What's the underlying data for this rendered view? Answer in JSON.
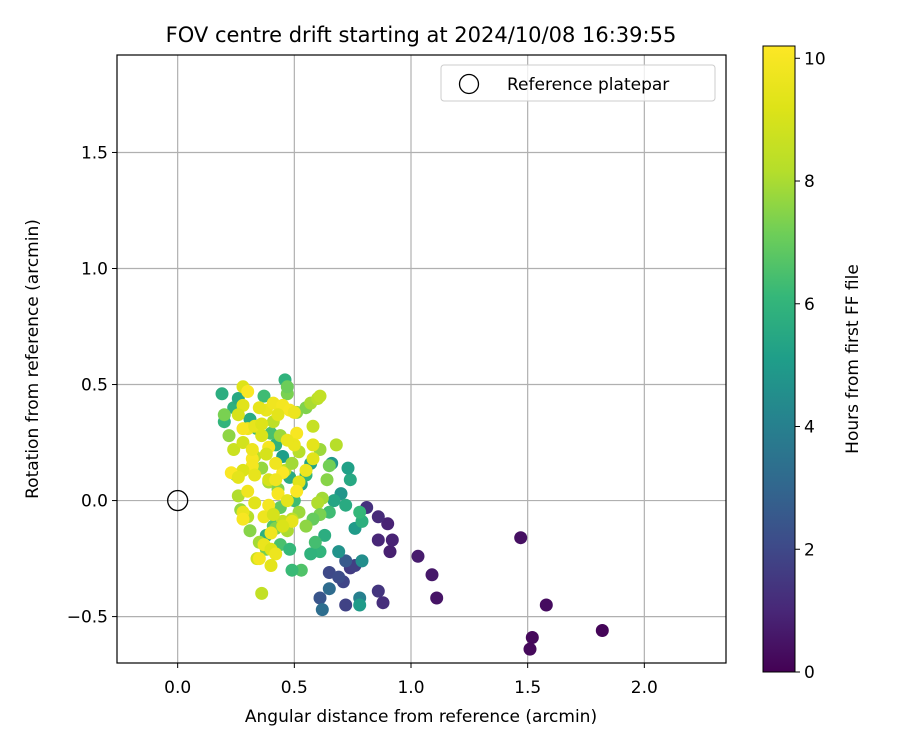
{
  "chart_data": {
    "type": "scatter",
    "title": "FOV centre drift starting at 2024/10/08 16:39:55",
    "xlabel": "Angular distance from reference (arcmin)",
    "ylabel": "Rotation from reference (arcmin)",
    "xlim": [
      -0.26,
      2.35
    ],
    "ylim": [
      -0.7,
      1.92
    ],
    "xticks": [
      "0.0",
      "0.5",
      "1.0",
      "1.5",
      "2.0"
    ],
    "xtick_values": [
      0,
      0.5,
      1.0,
      1.5,
      2.0
    ],
    "yticks": [
      "−0.5",
      "0.0",
      "0.5",
      "1.0",
      "1.5"
    ],
    "ytick_values": [
      -0.5,
      0,
      0.5,
      1.0,
      1.5
    ],
    "grid": true,
    "legend": {
      "placement": "top-right",
      "entries": [
        "Reference platepar"
      ]
    },
    "reference_point": {
      "x": 0.0,
      "y": 0.0
    },
    "colorbar": {
      "label": "Hours from first FF file",
      "range": [
        0,
        10.2
      ],
      "ticks": [
        "0",
        "2",
        "4",
        "6",
        "8",
        "10"
      ],
      "tick_values": [
        0,
        2,
        4,
        6,
        8,
        10
      ],
      "colormap": "viridis"
    },
    "points": [
      {
        "x": 1.82,
        "y": -0.56,
        "h": 0.1
      },
      {
        "x": 1.52,
        "y": -0.59,
        "h": 0.2
      },
      {
        "x": 1.51,
        "y": -0.64,
        "h": 0.2
      },
      {
        "x": 1.58,
        "y": -0.45,
        "h": 0.3
      },
      {
        "x": 1.47,
        "y": -0.16,
        "h": 0.4
      },
      {
        "x": 1.11,
        "y": -0.42,
        "h": 0.5
      },
      {
        "x": 1.09,
        "y": -0.32,
        "h": 0.6
      },
      {
        "x": 1.03,
        "y": -0.24,
        "h": 0.7
      },
      {
        "x": 0.91,
        "y": -0.22,
        "h": 0.8
      },
      {
        "x": 0.92,
        "y": -0.17,
        "h": 0.9
      },
      {
        "x": 0.86,
        "y": -0.17,
        "h": 1.0
      },
      {
        "x": 0.9,
        "y": -0.1,
        "h": 0.9
      },
      {
        "x": 0.86,
        "y": -0.07,
        "h": 1.1
      },
      {
        "x": 0.88,
        "y": -0.44,
        "h": 1.2
      },
      {
        "x": 0.86,
        "y": -0.39,
        "h": 1.4
      },
      {
        "x": 0.81,
        "y": -0.03,
        "h": 1.3
      },
      {
        "x": 0.72,
        "y": -0.45,
        "h": 1.8
      },
      {
        "x": 0.74,
        "y": -0.29,
        "h": 1.6
      },
      {
        "x": 0.76,
        "y": -0.28,
        "h": 1.7
      },
      {
        "x": 0.71,
        "y": -0.35,
        "h": 1.9
      },
      {
        "x": 0.65,
        "y": -0.31,
        "h": 2.0
      },
      {
        "x": 0.69,
        "y": -0.33,
        "h": 2.1
      },
      {
        "x": 0.61,
        "y": -0.42,
        "h": 2.4
      },
      {
        "x": 0.72,
        "y": -0.26,
        "h": 2.6
      },
      {
        "x": 0.65,
        "y": -0.38,
        "h": 3.2
      },
      {
        "x": 0.62,
        "y": -0.47,
        "h": 3.3
      },
      {
        "x": 0.78,
        "y": -0.42,
        "h": 4.0
      },
      {
        "x": 0.78,
        "y": -0.45,
        "h": 5.0
      },
      {
        "x": 0.79,
        "y": -0.26,
        "h": 4.5
      },
      {
        "x": 0.69,
        "y": -0.22,
        "h": 4.7
      },
      {
        "x": 0.74,
        "y": 0.09,
        "h": 5.5
      },
      {
        "x": 0.73,
        "y": 0.14,
        "h": 5.2
      },
      {
        "x": 0.7,
        "y": 0.03,
        "h": 4.8
      },
      {
        "x": 0.76,
        "y": -0.12,
        "h": 5.0
      },
      {
        "x": 0.79,
        "y": -0.09,
        "h": 5.8
      },
      {
        "x": 0.78,
        "y": -0.05,
        "h": 6.1
      },
      {
        "x": 0.72,
        "y": -0.02,
        "h": 5.6
      },
      {
        "x": 0.67,
        "y": 0.0,
        "h": 5.4
      },
      {
        "x": 0.65,
        "y": -0.05,
        "h": 6.3
      },
      {
        "x": 0.66,
        "y": 0.16,
        "h": 4.9
      },
      {
        "x": 0.63,
        "y": -0.15,
        "h": 5.7
      },
      {
        "x": 0.61,
        "y": -0.22,
        "h": 6.0
      },
      {
        "x": 0.57,
        "y": -0.23,
        "h": 5.9
      },
      {
        "x": 0.59,
        "y": -0.18,
        "h": 6.4
      },
      {
        "x": 0.53,
        "y": -0.3,
        "h": 6.6
      },
      {
        "x": 0.49,
        "y": -0.3,
        "h": 6.2
      },
      {
        "x": 0.44,
        "y": -0.19,
        "h": 6.5
      },
      {
        "x": 0.48,
        "y": -0.21,
        "h": 6.1
      },
      {
        "x": 0.38,
        "y": -0.15,
        "h": 5.8
      },
      {
        "x": 0.41,
        "y": -0.11,
        "h": 6.7
      },
      {
        "x": 0.44,
        "y": -0.03,
        "h": 6.9
      },
      {
        "x": 0.5,
        "y": 0.0,
        "h": 6.3
      },
      {
        "x": 0.53,
        "y": 0.07,
        "h": 5.5
      },
      {
        "x": 0.55,
        "y": 0.11,
        "h": 6.0
      },
      {
        "x": 0.57,
        "y": 0.16,
        "h": 5.3
      },
      {
        "x": 0.48,
        "y": 0.1,
        "h": 5.6
      },
      {
        "x": 0.45,
        "y": 0.19,
        "h": 5.1
      },
      {
        "x": 0.42,
        "y": 0.24,
        "h": 5.9
      },
      {
        "x": 0.4,
        "y": 0.29,
        "h": 6.5
      },
      {
        "x": 0.34,
        "y": 0.31,
        "h": 6.2
      },
      {
        "x": 0.31,
        "y": 0.35,
        "h": 5.6
      },
      {
        "x": 0.24,
        "y": 0.4,
        "h": 5.8
      },
      {
        "x": 0.2,
        "y": 0.34,
        "h": 6.0
      },
      {
        "x": 0.19,
        "y": 0.46,
        "h": 5.7
      },
      {
        "x": 0.26,
        "y": 0.44,
        "h": 5.5
      },
      {
        "x": 0.37,
        "y": 0.45,
        "h": 6.3
      },
      {
        "x": 0.46,
        "y": 0.52,
        "h": 5.9
      },
      {
        "x": 0.47,
        "y": 0.46,
        "h": 7.3
      },
      {
        "x": 0.47,
        "y": 0.49,
        "h": 7.1
      },
      {
        "x": 0.51,
        "y": 0.38,
        "h": 7.6
      },
      {
        "x": 0.55,
        "y": 0.4,
        "h": 7.4
      },
      {
        "x": 0.57,
        "y": 0.42,
        "h": 8.0
      },
      {
        "x": 0.6,
        "y": 0.44,
        "h": 8.3
      },
      {
        "x": 0.61,
        "y": 0.45,
        "h": 8.5
      },
      {
        "x": 0.58,
        "y": 0.32,
        "h": 8.6
      },
      {
        "x": 0.61,
        "y": 0.22,
        "h": 7.8
      },
      {
        "x": 0.65,
        "y": 0.15,
        "h": 7.2
      },
      {
        "x": 0.68,
        "y": 0.24,
        "h": 8.2
      },
      {
        "x": 0.64,
        "y": 0.09,
        "h": 7.5
      },
      {
        "x": 0.62,
        "y": 0.01,
        "h": 7.9
      },
      {
        "x": 0.6,
        "y": -0.01,
        "h": 8.1
      },
      {
        "x": 0.61,
        "y": -0.06,
        "h": 7.3
      },
      {
        "x": 0.58,
        "y": -0.08,
        "h": 7.0
      },
      {
        "x": 0.55,
        "y": -0.11,
        "h": 7.6
      },
      {
        "x": 0.52,
        "y": -0.05,
        "h": 7.8
      },
      {
        "x": 0.49,
        "y": -0.08,
        "h": 8.4
      },
      {
        "x": 0.47,
        "y": -0.13,
        "h": 8.0
      },
      {
        "x": 0.45,
        "y": -0.09,
        "h": 8.6
      },
      {
        "x": 0.42,
        "y": -0.12,
        "h": 7.4
      },
      {
        "x": 0.38,
        "y": -0.21,
        "h": 7.2
      },
      {
        "x": 0.36,
        "y": -0.4,
        "h": 8.5
      },
      {
        "x": 0.34,
        "y": -0.25,
        "h": 8.8
      },
      {
        "x": 0.35,
        "y": -0.18,
        "h": 7.9
      },
      {
        "x": 0.31,
        "y": -0.13,
        "h": 7.5
      },
      {
        "x": 0.3,
        "y": -0.07,
        "h": 8.2
      },
      {
        "x": 0.27,
        "y": -0.04,
        "h": 7.7
      },
      {
        "x": 0.26,
        "y": 0.02,
        "h": 8.1
      },
      {
        "x": 0.25,
        "y": 0.11,
        "h": 7.0
      },
      {
        "x": 0.24,
        "y": 0.22,
        "h": 8.7
      },
      {
        "x": 0.22,
        "y": 0.28,
        "h": 7.6
      },
      {
        "x": 0.2,
        "y": 0.37,
        "h": 7.3
      },
      {
        "x": 0.28,
        "y": 0.25,
        "h": 8.9
      },
      {
        "x": 0.33,
        "y": 0.19,
        "h": 8.3
      },
      {
        "x": 0.36,
        "y": 0.14,
        "h": 7.7
      },
      {
        "x": 0.39,
        "y": 0.08,
        "h": 8.0
      },
      {
        "x": 0.43,
        "y": 0.05,
        "h": 7.4
      },
      {
        "x": 0.46,
        "y": 0.13,
        "h": 8.5
      },
      {
        "x": 0.49,
        "y": 0.16,
        "h": 7.9
      },
      {
        "x": 0.52,
        "y": 0.21,
        "h": 8.2
      },
      {
        "x": 0.44,
        "y": 0.28,
        "h": 7.8
      },
      {
        "x": 0.41,
        "y": 0.34,
        "h": 8.4
      },
      {
        "x": 0.38,
        "y": 0.39,
        "h": 9.6
      },
      {
        "x": 0.41,
        "y": 0.42,
        "h": 9.8
      },
      {
        "x": 0.45,
        "y": 0.41,
        "h": 9.9
      },
      {
        "x": 0.48,
        "y": 0.39,
        "h": 10.0
      },
      {
        "x": 0.5,
        "y": 0.38,
        "h": 9.7
      },
      {
        "x": 0.43,
        "y": 0.37,
        "h": 9.4
      },
      {
        "x": 0.35,
        "y": 0.4,
        "h": 9.5
      },
      {
        "x": 0.28,
        "y": 0.49,
        "h": 9.2
      },
      {
        "x": 0.3,
        "y": 0.47,
        "h": 10.1
      },
      {
        "x": 0.28,
        "y": 0.41,
        "h": 9.3
      },
      {
        "x": 0.26,
        "y": 0.37,
        "h": 9.0
      },
      {
        "x": 0.3,
        "y": 0.31,
        "h": 9.8
      },
      {
        "x": 0.28,
        "y": 0.31,
        "h": 10.0
      },
      {
        "x": 0.33,
        "y": 0.32,
        "h": 9.5
      },
      {
        "x": 0.36,
        "y": 0.28,
        "h": 9.1
      },
      {
        "x": 0.39,
        "y": 0.23,
        "h": 9.9
      },
      {
        "x": 0.51,
        "y": 0.29,
        "h": 10.0
      },
      {
        "x": 0.5,
        "y": 0.24,
        "h": 9.6
      },
      {
        "x": 0.58,
        "y": 0.24,
        "h": 9.4
      },
      {
        "x": 0.55,
        "y": 0.13,
        "h": 9.7
      },
      {
        "x": 0.52,
        "y": 0.08,
        "h": 9.3
      },
      {
        "x": 0.45,
        "y": 0.12,
        "h": 10.1
      },
      {
        "x": 0.42,
        "y": 0.16,
        "h": 9.8
      },
      {
        "x": 0.38,
        "y": 0.2,
        "h": 9.0
      },
      {
        "x": 0.32,
        "y": 0.18,
        "h": 10.0
      },
      {
        "x": 0.32,
        "y": 0.22,
        "h": 9.7
      },
      {
        "x": 0.32,
        "y": 0.15,
        "h": 9.9
      },
      {
        "x": 0.33,
        "y": 0.11,
        "h": 9.5
      },
      {
        "x": 0.28,
        "y": 0.13,
        "h": 9.2
      },
      {
        "x": 0.23,
        "y": 0.12,
        "h": 10.1
      },
      {
        "x": 0.26,
        "y": 0.1,
        "h": 9.4
      },
      {
        "x": 0.3,
        "y": 0.04,
        "h": 9.8
      },
      {
        "x": 0.28,
        "y": -0.05,
        "h": 9.6
      },
      {
        "x": 0.28,
        "y": -0.08,
        "h": 10.0
      },
      {
        "x": 0.33,
        "y": -0.01,
        "h": 9.3
      },
      {
        "x": 0.37,
        "y": -0.07,
        "h": 9.7
      },
      {
        "x": 0.39,
        "y": -0.02,
        "h": 9.9
      },
      {
        "x": 0.41,
        "y": -0.06,
        "h": 9.0
      },
      {
        "x": 0.43,
        "y": 0.03,
        "h": 10.0
      },
      {
        "x": 0.47,
        "y": 0.0,
        "h": 9.4
      },
      {
        "x": 0.51,
        "y": 0.04,
        "h": 10.1
      },
      {
        "x": 0.49,
        "y": -0.09,
        "h": 9.5
      },
      {
        "x": 0.45,
        "y": -0.11,
        "h": 9.1
      },
      {
        "x": 0.4,
        "y": -0.14,
        "h": 9.8
      },
      {
        "x": 0.37,
        "y": -0.19,
        "h": 9.6
      },
      {
        "x": 0.4,
        "y": -0.21,
        "h": 9.2
      },
      {
        "x": 0.42,
        "y": -0.23,
        "h": 9.7
      },
      {
        "x": 0.35,
        "y": -0.25,
        "h": 9.9
      },
      {
        "x": 0.4,
        "y": -0.28,
        "h": 9.4
      },
      {
        "x": 0.47,
        "y": 0.26,
        "h": 9.6
      },
      {
        "x": 0.58,
        "y": 0.18,
        "h": 9.3
      },
      {
        "x": 0.39,
        "y": 0.09,
        "h": 9.0
      },
      {
        "x": 0.42,
        "y": 0.09,
        "h": 9.8
      },
      {
        "x": 0.36,
        "y": 0.33,
        "h": 9.2
      }
    ]
  }
}
